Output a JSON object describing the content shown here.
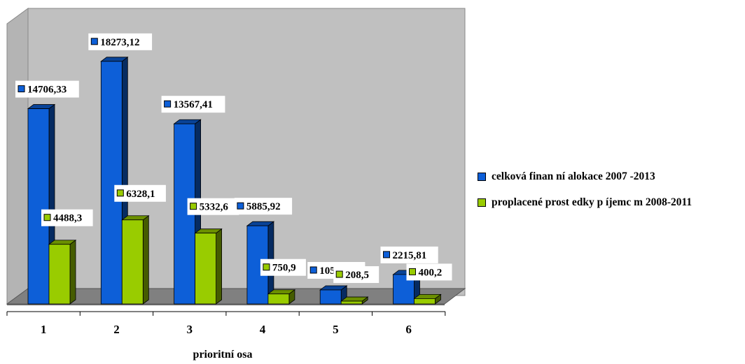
{
  "chart_data": {
    "type": "bar",
    "categories": [
      "1",
      "2",
      "3",
      "4",
      "5",
      "6"
    ],
    "xlabel": "prioritní osa",
    "ylim": [
      0,
      20000
    ],
    "grid": false,
    "legend_position": "right",
    "series": [
      {
        "name": "celková finan ní alokace 2007 -2013",
        "color": "#0d5fd8",
        "values": [
          14706.33,
          18273.12,
          13567.41,
          5885.92,
          1053.29,
          2215.81
        ],
        "labels": [
          "14706,33",
          "18273,12",
          "13567,41",
          "5885,92",
          "1053,29",
          "2215,81"
        ]
      },
      {
        "name": "proplacené prost edky p íjemc m 2008-2011",
        "color": "#99cc00",
        "values": [
          4488.3,
          6328.1,
          5332.6,
          750.9,
          208.5,
          400.2
        ],
        "labels": [
          "4488,3",
          "6328,1",
          "5332,6",
          "750,9",
          "208,5",
          "400,2"
        ]
      }
    ]
  },
  "legend": {
    "items": [
      {
        "label": "celková finan ní alokace 2007 -2013",
        "color": "#0d5fd8"
      },
      {
        "label": "proplacené prost edky p íjemc m 2008-2011",
        "color": "#99cc00"
      }
    ]
  }
}
